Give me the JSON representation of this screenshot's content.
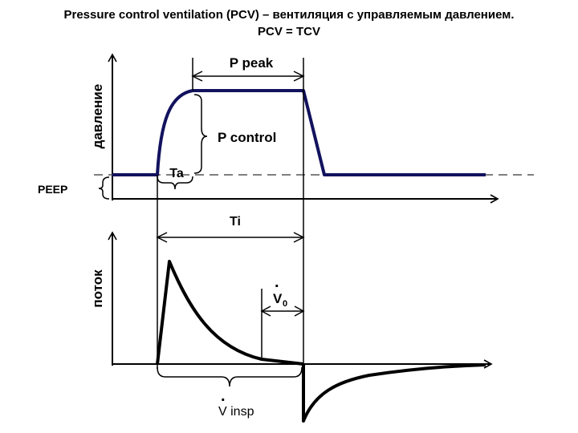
{
  "title": {
    "line1": "Pressure control ventilation (PCV) – вентиляция с управляемым давлением.",
    "line2": "PCV = TCV"
  },
  "pressure_graph": {
    "ylabel": "давление",
    "labels": {
      "p_peak": "P peak",
      "p_control": "P control",
      "ta": "Ta",
      "peep": "PEEP",
      "ti": "Ti"
    },
    "colors": {
      "trace": "#12125e",
      "axis": "#000000",
      "baseline": "#555555"
    }
  },
  "flow_graph": {
    "ylabel": "поток",
    "labels": {
      "v0": "V",
      "v0_subscript": "0",
      "v_insp": "V insp",
      "dot": "."
    },
    "colors": {
      "trace": "#000000"
    }
  }
}
